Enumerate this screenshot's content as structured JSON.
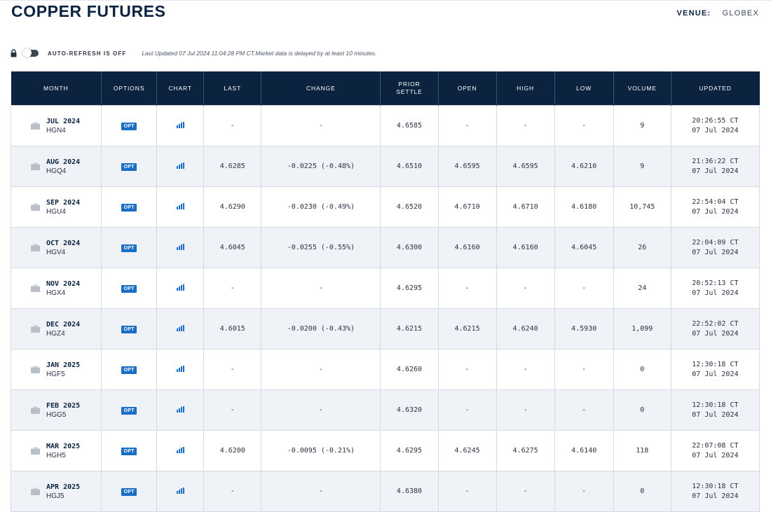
{
  "page": {
    "title": "COPPER FUTURES",
    "venue_label": "VENUE:",
    "venue_value": "GLOBEX"
  },
  "toolbar": {
    "lock_icon": "lock-icon",
    "auto_refresh_label": "AUTO-REFRESH IS OFF",
    "auto_refresh_on": false,
    "last_updated": "Last Updated 07 Jul 2024 11:04:28 PM CT.",
    "delay_note": "Market data is delayed by at least 10 minutes."
  },
  "colors": {
    "header_bg": "#0c2340",
    "opt_badge": "#1a6fc4",
    "negative": "#e01e1e",
    "chart_icon": "#1a6fc4",
    "alt_row": "#eff2f6"
  },
  "table": {
    "columns": [
      {
        "key": "month",
        "label": "MONTH"
      },
      {
        "key": "options",
        "label": "OPTIONS"
      },
      {
        "key": "chart",
        "label": "CHART"
      },
      {
        "key": "last",
        "label": "LAST"
      },
      {
        "key": "change",
        "label": "CHANGE"
      },
      {
        "key": "prior_settle",
        "label": "PRIOR\nSETTLE"
      },
      {
        "key": "open",
        "label": "OPEN"
      },
      {
        "key": "high",
        "label": "HIGH"
      },
      {
        "key": "low",
        "label": "LOW"
      },
      {
        "key": "volume",
        "label": "VOLUME"
      },
      {
        "key": "updated",
        "label": "UPDATED"
      }
    ],
    "rows": [
      {
        "month": "JUL 2024",
        "code": "HGN4",
        "options": "OPT",
        "last": "-",
        "change": "-",
        "prior_settle": "4.6585",
        "open": "-",
        "high": "-",
        "low": "-",
        "volume": "9",
        "updated_time": "20:26:55 CT",
        "updated_date": "07 Jul 2024"
      },
      {
        "month": "AUG 2024",
        "code": "HGQ4",
        "options": "OPT",
        "last": "4.6285",
        "change": "-0.0225 (-0.48%)",
        "prior_settle": "4.6510",
        "open": "4.6595",
        "high": "4.6595",
        "low": "4.6210",
        "volume": "9",
        "updated_time": "21:36:22 CT",
        "updated_date": "07 Jul 2024"
      },
      {
        "month": "SEP 2024",
        "code": "HGU4",
        "options": "OPT",
        "last": "4.6290",
        "change": "-0.0230 (-0.49%)",
        "prior_settle": "4.6520",
        "open": "4.6710",
        "high": "4.6710",
        "low": "4.6180",
        "volume": "10,745",
        "updated_time": "22:54:04 CT",
        "updated_date": "07 Jul 2024"
      },
      {
        "month": "OCT 2024",
        "code": "HGV4",
        "options": "OPT",
        "last": "4.6045",
        "change": "-0.0255 (-0.55%)",
        "prior_settle": "4.6300",
        "open": "4.6160",
        "high": "4.6160",
        "low": "4.6045",
        "volume": "26",
        "updated_time": "22:04:09 CT",
        "updated_date": "07 Jul 2024"
      },
      {
        "month": "NOV 2024",
        "code": "HGX4",
        "options": "OPT",
        "last": "-",
        "change": "-",
        "prior_settle": "4.6295",
        "open": "-",
        "high": "-",
        "low": "-",
        "volume": "24",
        "updated_time": "20:52:13 CT",
        "updated_date": "07 Jul 2024"
      },
      {
        "month": "DEC 2024",
        "code": "HGZ4",
        "options": "OPT",
        "last": "4.6015",
        "change": "-0.0200 (-0.43%)",
        "prior_settle": "4.6215",
        "open": "4.6215",
        "high": "4.6240",
        "low": "4.5930",
        "volume": "1,099",
        "updated_time": "22:52:02 CT",
        "updated_date": "07 Jul 2024"
      },
      {
        "month": "JAN 2025",
        "code": "HGF5",
        "options": "OPT",
        "last": "-",
        "change": "-",
        "prior_settle": "4.6260",
        "open": "-",
        "high": "-",
        "low": "-",
        "volume": "0",
        "updated_time": "12:30:18 CT",
        "updated_date": "07 Jul 2024"
      },
      {
        "month": "FEB 2025",
        "code": "HGG5",
        "options": "OPT",
        "last": "-",
        "change": "-",
        "prior_settle": "4.6320",
        "open": "-",
        "high": "-",
        "low": "-",
        "volume": "0",
        "updated_time": "12:30:18 CT",
        "updated_date": "07 Jul 2024"
      },
      {
        "month": "MAR 2025",
        "code": "HGH5",
        "options": "OPT",
        "last": "4.6200",
        "change": "-0.0095 (-0.21%)",
        "prior_settle": "4.6295",
        "open": "4.6245",
        "high": "4.6275",
        "low": "4.6140",
        "volume": "118",
        "updated_time": "22:07:08 CT",
        "updated_date": "07 Jul 2024"
      },
      {
        "month": "APR 2025",
        "code": "HGJ5",
        "options": "OPT",
        "last": "-",
        "change": "-",
        "prior_settle": "4.6380",
        "open": "-",
        "high": "-",
        "low": "-",
        "volume": "0",
        "updated_time": "12:30:18 CT",
        "updated_date": "07 Jul 2024"
      }
    ]
  }
}
